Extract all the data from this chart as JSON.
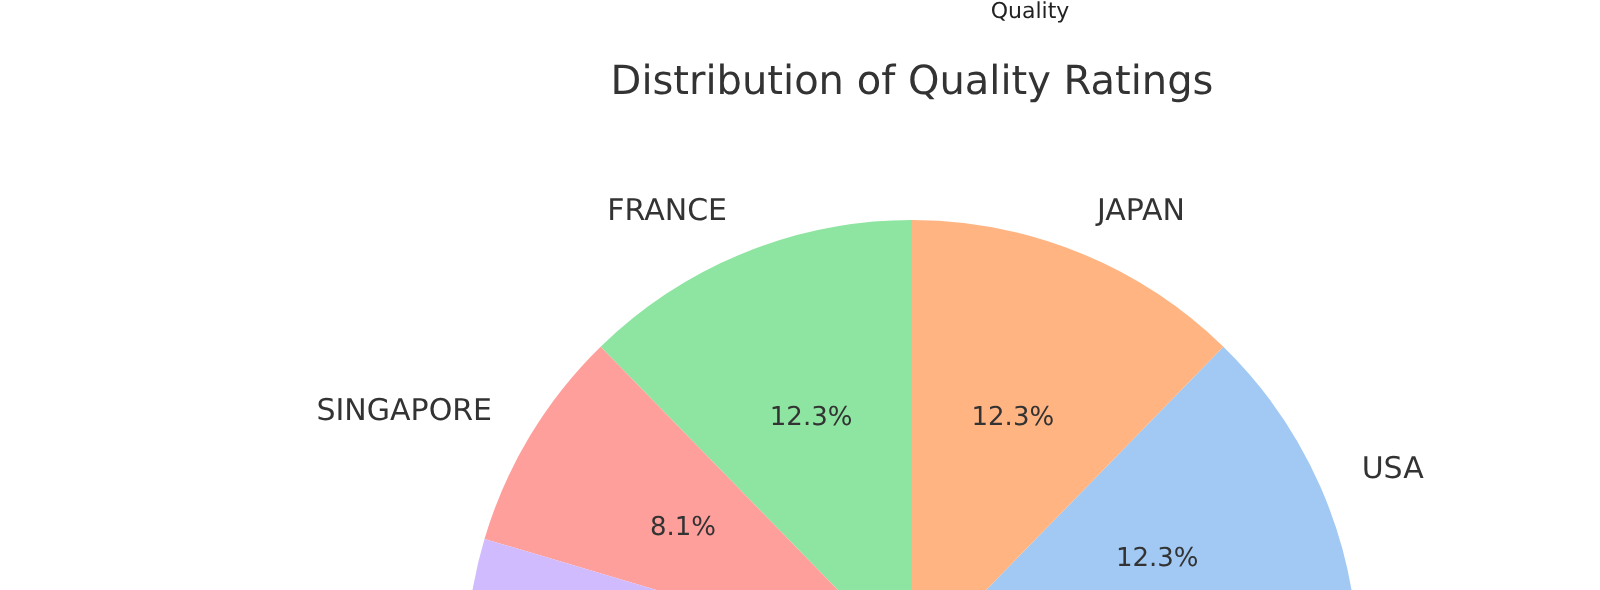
{
  "chart_data": {
    "type": "pie",
    "title": "Distribution of Quality Ratings",
    "legend_title": "Quality",
    "categories": [
      "FRANCE",
      "SINGAPORE",
      null,
      "USA",
      "JAPAN"
    ],
    "values": [
      12.3,
      8.1,
      55.0,
      12.3,
      12.3
    ],
    "value_labels": [
      "12.3%",
      "8.1%",
      null,
      "12.3%",
      "12.3%"
    ],
    "colors": [
      "#8de5a1",
      "#ff9f9b",
      "#d0bbff",
      "#a1c9f4",
      "#ffb482"
    ]
  }
}
